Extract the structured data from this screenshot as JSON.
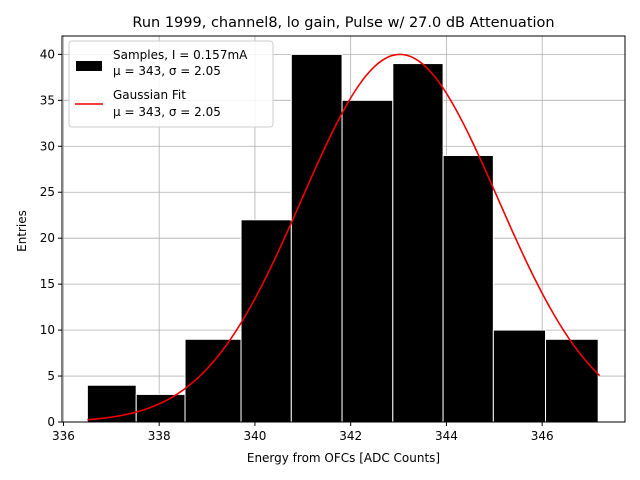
{
  "chart_data": {
    "type": "bar",
    "title": "Run 1999, channel8, lo gain, Pulse w/ 27.0 dB Attenuation",
    "xlabel": "Energy from OFCs [ADC Counts]",
    "ylabel": "Entries",
    "xlim": [
      335.97,
      347.73
    ],
    "ylim": [
      0,
      42
    ],
    "grid": true,
    "legend_position": "top-left",
    "x_ticks": [
      336,
      338,
      340,
      342,
      344,
      346
    ],
    "y_ticks": [
      0,
      5,
      10,
      15,
      20,
      25,
      30,
      35,
      40
    ],
    "histogram": {
      "name": "Samples, I = 0.157mA",
      "stats": "μ = 343, σ = 2.05",
      "color": "#000000",
      "edge_color": "#ffffff",
      "bins": [
        {
          "from": 336.5,
          "to": 337.52,
          "count": 4
        },
        {
          "from": 337.52,
          "to": 338.54,
          "count": 3
        },
        {
          "from": 338.54,
          "to": 339.71,
          "count": 9
        },
        {
          "from": 339.71,
          "to": 340.76,
          "count": 22
        },
        {
          "from": 340.76,
          "to": 341.82,
          "count": 40
        },
        {
          "from": 341.82,
          "to": 342.88,
          "count": 35
        },
        {
          "from": 342.88,
          "to": 343.93,
          "count": 39
        },
        {
          "from": 343.93,
          "to": 344.98,
          "count": 29
        },
        {
          "from": 344.98,
          "to": 346.07,
          "count": 10
        },
        {
          "from": 346.07,
          "to": 347.17,
          "count": 9
        }
      ]
    },
    "fit": {
      "name": "Gaussian Fit",
      "stats": "μ = 343, σ = 2.05",
      "color": "#ee0000",
      "amplitude": 40,
      "mean": 343.03,
      "sigma": 2.05,
      "x_range": [
        336.5,
        347.2
      ]
    }
  }
}
